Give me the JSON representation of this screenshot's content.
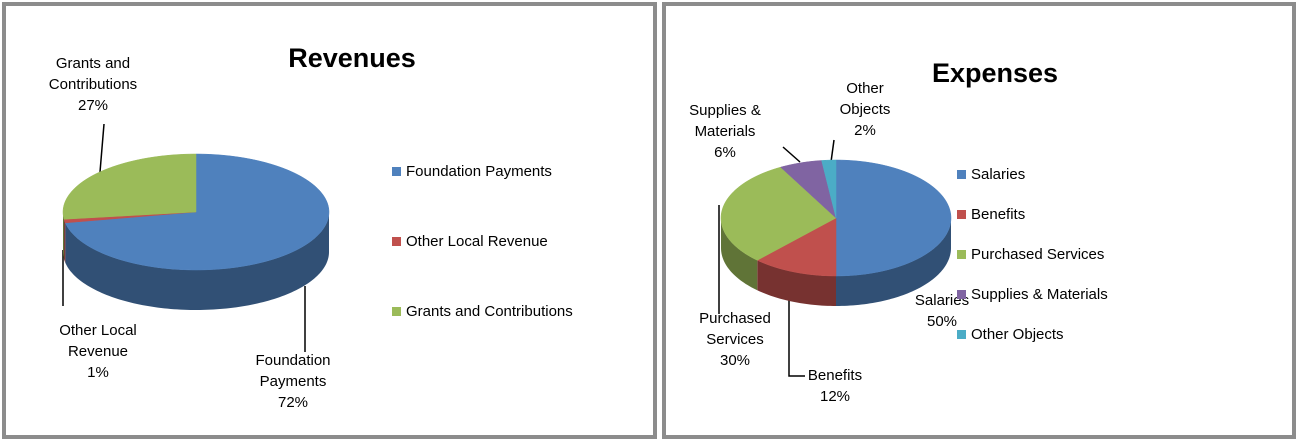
{
  "chart_data": [
    {
      "type": "pie",
      "title": "Revenues",
      "categories": [
        "Foundation Payments",
        "Other Local Revenue",
        "Grants and Contributions"
      ],
      "values": [
        72,
        1,
        27
      ],
      "value_labels": [
        "72%",
        "1%",
        "27%"
      ],
      "colors": [
        "#4f81bd",
        "#c0504d",
        "#9bbb59"
      ],
      "legend": "right"
    },
    {
      "type": "pie",
      "title": "Expenses",
      "categories": [
        "Salaries",
        "Benefits",
        "Purchased Services",
        "Supplies & Materials",
        "Other Objects"
      ],
      "values": [
        50,
        12,
        30,
        6,
        2
      ],
      "value_labels": [
        "50%",
        "12%",
        "30%",
        "6%",
        "2%"
      ],
      "colors": [
        "#4f81bd",
        "#c0504d",
        "#9bbb59",
        "#8064a2",
        "#4bacc6"
      ],
      "legend": "right"
    }
  ]
}
